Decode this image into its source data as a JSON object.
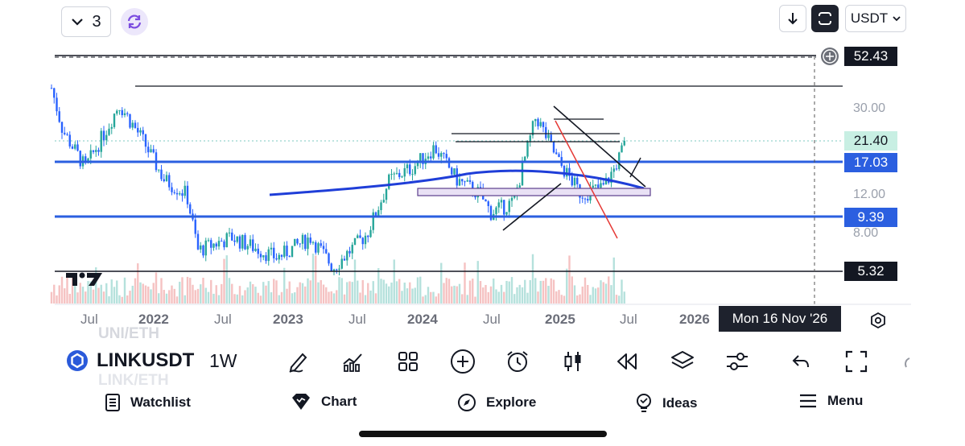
{
  "top_bar": {
    "interval_count": "3",
    "currency": "USDT"
  },
  "price_labels": {
    "high_line": "52.43",
    "last": "21.40",
    "upper_support": "17.03",
    "lower_support": "9.39",
    "bottom_line": "5.32"
  },
  "price_axis": {
    "ticks": [
      "30.00",
      "12.00",
      "8.00"
    ]
  },
  "time_axis": {
    "labels": [
      "Jul",
      "2022",
      "Jul",
      "2023",
      "Jul",
      "2024",
      "Jul",
      "2025",
      "Jul",
      "2026"
    ],
    "crosshair_date": "Mon 16 Nov '26"
  },
  "symbol": {
    "ticker": "LINKUSDT",
    "interval": "1W",
    "ghost_above": "UNI/ETH",
    "ghost_below": "LINK/ETH"
  },
  "bottom_nav": {
    "watchlist": "Watchlist",
    "chart": "Chart",
    "explore": "Explore",
    "ideas": "Ideas",
    "menu": "Menu"
  },
  "colors": {
    "up": "#26a69a",
    "down": "#2962ff",
    "hline_blue": "#2b5fe0",
    "ma": "#1f3ed8",
    "last_price_bg": "#c8efe3",
    "dark_label_bg": "#131722"
  },
  "chart_data": {
    "type": "candlestick",
    "symbol": "LINKUSDT",
    "interval": "1W",
    "scale": "log",
    "horizontal_levels": [
      52.43,
      17.03,
      9.39,
      5.32
    ],
    "last_price": 21.4,
    "y_ticks": [
      30.0,
      12.0,
      8.0
    ],
    "x_ticks": [
      "Jul",
      "2022",
      "Jul",
      "2023",
      "Jul",
      "2024",
      "Jul",
      "2025",
      "Jul",
      "2026"
    ],
    "price_path": [
      {
        "t": "2021-05",
        "price": 38
      },
      {
        "t": "2021-06",
        "price": 24
      },
      {
        "t": "2021-08",
        "price": 16
      },
      {
        "t": "2021-10",
        "price": 25
      },
      {
        "t": "2021-11",
        "price": 32
      },
      {
        "t": "2022-01",
        "price": 22
      },
      {
        "t": "2022-03",
        "price": 14
      },
      {
        "t": "2022-05",
        "price": 12
      },
      {
        "t": "2022-06",
        "price": 6.5
      },
      {
        "t": "2022-09",
        "price": 7.5
      },
      {
        "t": "2023-01",
        "price": 6.0
      },
      {
        "t": "2023-04",
        "price": 7.5
      },
      {
        "t": "2023-06",
        "price": 5.4
      },
      {
        "t": "2023-09",
        "price": 7.8
      },
      {
        "t": "2023-11",
        "price": 14
      },
      {
        "t": "2024-01",
        "price": 16
      },
      {
        "t": "2024-03",
        "price": 20
      },
      {
        "t": "2024-05",
        "price": 14
      },
      {
        "t": "2024-07",
        "price": 12
      },
      {
        "t": "2024-08",
        "price": 9.8
      },
      {
        "t": "2024-10",
        "price": 11
      },
      {
        "t": "2024-12",
        "price": 28
      },
      {
        "t": "2025-02",
        "price": 17
      },
      {
        "t": "2025-04",
        "price": 12
      },
      {
        "t": "2025-06",
        "price": 13
      },
      {
        "t": "2025-07",
        "price": 16
      },
      {
        "t": "2025-08",
        "price": 21.4
      }
    ]
  }
}
